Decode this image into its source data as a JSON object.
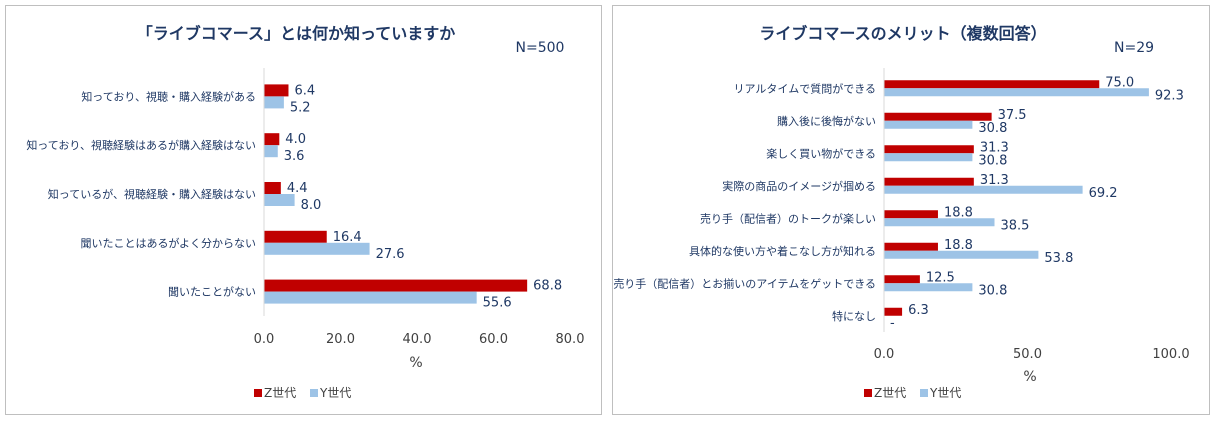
{
  "colors": {
    "z_series": "#c00000",
    "y_series": "#9dc3e6",
    "text": "#1f3864",
    "axis": "#d9d9d9"
  },
  "chart_data": [
    {
      "type": "bar",
      "orientation": "horizontal",
      "title": "「ライブコマース」とは何か知っていますか",
      "sample": "N=500",
      "categories": [
        "知っており、視聴・購入経験がある",
        "知っており、視聴経験はあるが購入経験はない",
        "知っているが、視聴経験・購入経験はない",
        "聞いたことはあるがよく分からない",
        "聞いたことがない"
      ],
      "series": [
        {
          "name": "Z世代",
          "values": [
            6.4,
            4.0,
            4.4,
            16.4,
            68.8
          ],
          "labels": [
            "6.4",
            "4.0",
            "4.4",
            "16.4",
            "68.8"
          ]
        },
        {
          "name": "Y世代",
          "values": [
            5.2,
            3.6,
            8.0,
            27.6,
            55.6
          ],
          "labels": [
            "5.2",
            "3.6",
            "8.0",
            "27.6",
            "55.6"
          ]
        }
      ],
      "xlim": [
        0,
        80
      ],
      "xticks": [
        "0.0",
        "20.0",
        "40.0",
        "60.0",
        "80.0"
      ],
      "xlabel": "%",
      "legend": "bottom",
      "grid": false
    },
    {
      "type": "bar",
      "orientation": "horizontal",
      "title": "ライブコマースのメリット（複数回答）",
      "sample": "N=29",
      "categories": [
        "リアルタイムで質問ができる",
        "購入後に後悔がない",
        "楽しく買い物ができる",
        "実際の商品のイメージが掴める",
        "売り手（配信者）のトークが楽しい",
        "具体的な使い方や着こなし方が知れる",
        "売り手（配信者）とお揃いのアイテムをゲットできる",
        "特になし"
      ],
      "series": [
        {
          "name": "Z世代",
          "values": [
            75.0,
            37.5,
            31.3,
            31.3,
            18.8,
            18.8,
            12.5,
            6.3
          ],
          "labels": [
            "75.0",
            "37.5",
            "31.3",
            "31.3",
            "18.8",
            "18.8",
            "12.5",
            "6.3"
          ]
        },
        {
          "name": "Y世代",
          "values": [
            92.3,
            30.8,
            30.8,
            69.2,
            38.5,
            53.8,
            30.8,
            0
          ],
          "labels": [
            "92.3",
            "30.8",
            "30.8",
            "69.2",
            "38.5",
            "53.8",
            "30.8",
            "-"
          ]
        }
      ],
      "xlim": [
        0,
        100
      ],
      "xticks": [
        "0.0",
        "50.0",
        "100.0"
      ],
      "xlabel": "%",
      "legend": "bottom",
      "grid": false
    }
  ]
}
